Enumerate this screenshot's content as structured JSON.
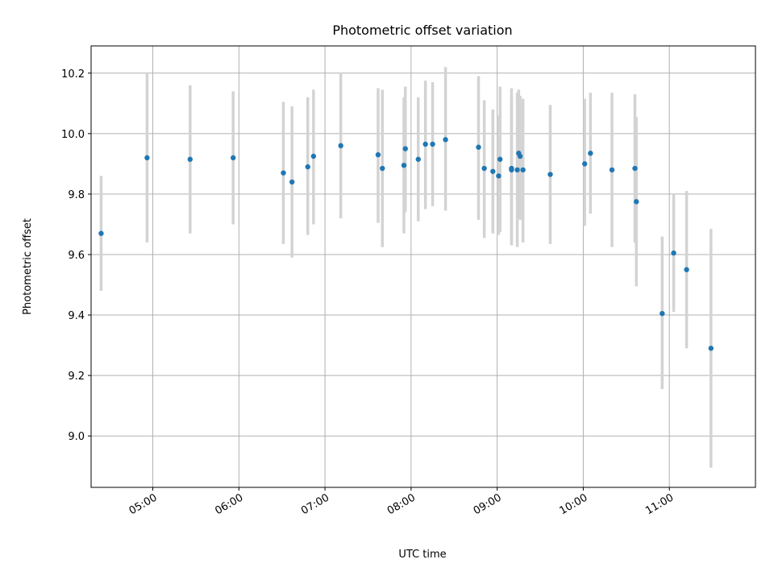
{
  "chart_data": {
    "type": "scatter",
    "title": "Photometric offset variation",
    "xlabel": "UTC time",
    "ylabel": "Photometric offset",
    "xlim": [
      "04:17",
      "12:00"
    ],
    "ylim": [
      8.83,
      10.29
    ],
    "x_ticks": [
      "05:00",
      "06:00",
      "07:00",
      "08:00",
      "09:00",
      "10:00",
      "11:00"
    ],
    "y_ticks": [
      "9.0",
      "9.2",
      "9.4",
      "9.6",
      "9.8",
      "10.0",
      "10.2"
    ],
    "grid": true,
    "legend": "none",
    "marker_color": "#1f77b4",
    "errorbar_color": "#d3d3d3",
    "points": [
      {
        "time": "04:24",
        "y": 9.67,
        "err_low": 9.48,
        "err_high": 9.86
      },
      {
        "time": "04:56",
        "y": 9.92,
        "err_low": 9.64,
        "err_high": 10.2
      },
      {
        "time": "05:26",
        "y": 9.915,
        "err_low": 9.67,
        "err_high": 10.16
      },
      {
        "time": "05:56",
        "y": 9.92,
        "err_low": 9.7,
        "err_high": 10.14
      },
      {
        "time": "06:31",
        "y": 9.87,
        "err_low": 9.635,
        "err_high": 10.105
      },
      {
        "time": "06:37",
        "y": 9.84,
        "err_low": 9.59,
        "err_high": 10.09
      },
      {
        "time": "06:48",
        "y": 9.89,
        "err_low": 9.665,
        "err_high": 10.12
      },
      {
        "time": "06:52",
        "y": 9.925,
        "err_low": 9.7,
        "err_high": 10.145
      },
      {
        "time": "07:11",
        "y": 9.96,
        "err_low": 9.72,
        "err_high": 10.2
      },
      {
        "time": "07:37",
        "y": 9.93,
        "err_low": 9.705,
        "err_high": 10.15
      },
      {
        "time": "07:40",
        "y": 9.885,
        "err_low": 9.625,
        "err_high": 10.145
      },
      {
        "time": "07:55",
        "y": 9.895,
        "err_low": 9.67,
        "err_high": 10.12
      },
      {
        "time": "07:56",
        "y": 9.95,
        "err_low": 9.74,
        "err_high": 10.155
      },
      {
        "time": "08:05",
        "y": 9.915,
        "err_low": 9.71,
        "err_high": 10.12
      },
      {
        "time": "08:10",
        "y": 9.965,
        "err_low": 9.75,
        "err_high": 10.175
      },
      {
        "time": "08:15",
        "y": 9.965,
        "err_low": 9.76,
        "err_high": 10.17
      },
      {
        "time": "08:24",
        "y": 9.98,
        "err_low": 9.745,
        "err_high": 10.22
      },
      {
        "time": "08:47",
        "y": 9.955,
        "err_low": 9.715,
        "err_high": 10.19
      },
      {
        "time": "08:51",
        "y": 9.885,
        "err_low": 9.655,
        "err_high": 10.11
      },
      {
        "time": "08:57",
        "y": 9.875,
        "err_low": 9.67,
        "err_high": 10.08
      },
      {
        "time": "09:01",
        "y": 9.86,
        "err_low": 9.665,
        "err_high": 10.06
      },
      {
        "time": "09:02",
        "y": 9.915,
        "err_low": 9.675,
        "err_high": 10.155
      },
      {
        "time": "09:10",
        "y": 9.885,
        "err_low": 9.63,
        "err_high": 10.15
      },
      {
        "time": "09:10",
        "y": 9.88,
        "err_low": 9.64,
        "err_high": 10.12
      },
      {
        "time": "09:14",
        "y": 9.88,
        "err_low": 9.625,
        "err_high": 10.135
      },
      {
        "time": "09:15",
        "y": 9.935,
        "err_low": 9.72,
        "err_high": 10.145
      },
      {
        "time": "09:16",
        "y": 9.925,
        "err_low": 9.715,
        "err_high": 10.125
      },
      {
        "time": "09:18",
        "y": 9.88,
        "err_low": 9.64,
        "err_high": 10.115
      },
      {
        "time": "09:37",
        "y": 9.865,
        "err_low": 9.635,
        "err_high": 10.095
      },
      {
        "time": "10:01",
        "y": 9.9,
        "err_low": 9.695,
        "err_high": 10.115
      },
      {
        "time": "10:05",
        "y": 9.935,
        "err_low": 9.735,
        "err_high": 10.135
      },
      {
        "time": "10:20",
        "y": 9.88,
        "err_low": 9.625,
        "err_high": 10.135
      },
      {
        "time": "10:36",
        "y": 9.885,
        "err_low": 9.64,
        "err_high": 10.13
      },
      {
        "time": "10:37",
        "y": 9.775,
        "err_low": 9.495,
        "err_high": 10.055
      },
      {
        "time": "10:55",
        "y": 9.405,
        "err_low": 9.155,
        "err_high": 9.66
      },
      {
        "time": "11:03",
        "y": 9.605,
        "err_low": 9.41,
        "err_high": 9.8
      },
      {
        "time": "11:12",
        "y": 9.55,
        "err_low": 9.29,
        "err_high": 9.81
      },
      {
        "time": "11:29",
        "y": 9.29,
        "err_low": 8.895,
        "err_high": 9.685
      }
    ]
  }
}
